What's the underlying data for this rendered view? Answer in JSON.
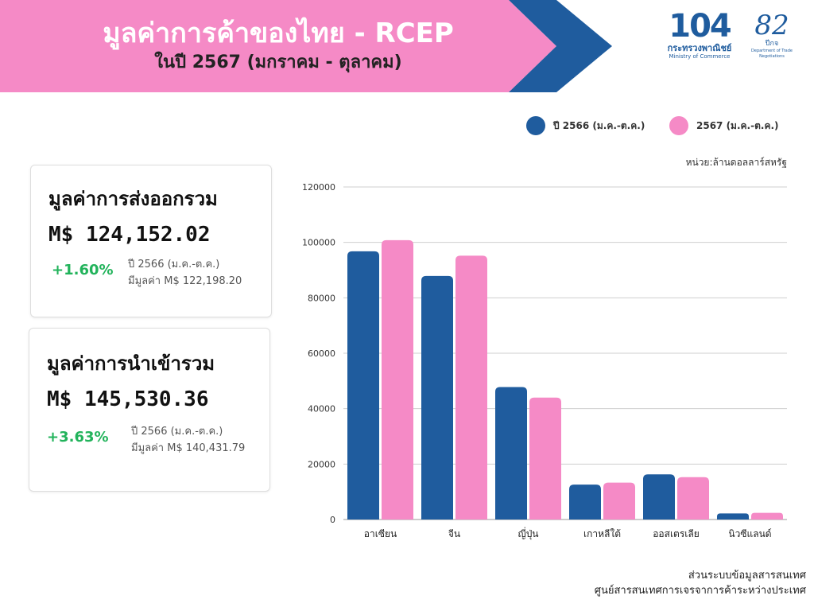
{
  "header": {
    "title": "มูลค่าการค้าของไทย - RCEP",
    "subtitle": "ในปี 2567 (มกราคม - ตุลาคม)",
    "band_color": "#f58ac6",
    "arrow_color": "#1f5c9e"
  },
  "logos": {
    "ministry_number": "104",
    "ministry_th": "กระทรวงพาณิชย์",
    "ministry_en": "Ministry of Commerce",
    "dtn_number": "82",
    "dtn_suffix": "ปีกจ",
    "dtn_en": "Department of Trade Negotiations"
  },
  "export_card": {
    "title": "มูลค่าการส่งออกรวม",
    "value": "M$ 124,152.02",
    "change": "+1.60%",
    "prev_label": "ปี 2566 (ม.ค.-ต.ค.)",
    "prev_value": "มีมูลค่า M$ 122,198.20"
  },
  "import_card": {
    "title": "มูลค่าการนำเข้ารวม",
    "value": "M$ 145,530.36",
    "change": "+3.63%",
    "prev_label": "ปี 2566 (ม.ค.-ต.ค.)",
    "prev_value": "มีมูลค่า M$ 140,431.79"
  },
  "chart_data": {
    "type": "bar",
    "title": "",
    "unit": "หน่วย:ล้านดอลลาร์สหรัฐ",
    "categories": [
      "อาเซียน",
      "จีน",
      "ญี่ปุ่น",
      "เกาหลีใต้",
      "ออสเตรเลีย",
      "นิวซีแลนด์"
    ],
    "series": [
      {
        "name": "ปี 2566 (ม.ค.-ต.ค.)",
        "color": "#1f5c9e",
        "values": [
          96800,
          87900,
          47800,
          12600,
          16300,
          2200
        ]
      },
      {
        "name": "2567 (ม.ค.-ต.ค.)",
        "color": "#f58ac6",
        "values": [
          100800,
          95200,
          44000,
          13300,
          15300,
          2400
        ]
      }
    ],
    "yticks": [
      0,
      20000,
      40000,
      60000,
      80000,
      100000,
      120000
    ],
    "ylim": [
      0,
      120000
    ],
    "grid": true,
    "legend_position": "top-right"
  },
  "source": {
    "line1": "ส่วนระบบข้อมูลสารสนเทศ",
    "line2": "ศูนย์สารสนเทศการเจรจาการค้าระหว่างประเทศ"
  }
}
